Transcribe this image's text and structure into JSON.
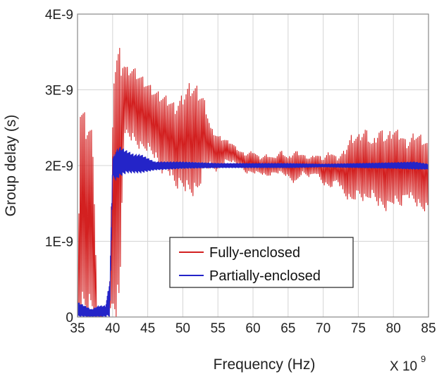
{
  "chart_data": {
    "type": "line",
    "xlabel": "Frequency (Hz)",
    "ylabel": "Group delay (s)",
    "x_multiplier_label": "X 10",
    "x_multiplier_exponent": "9",
    "xlim": [
      35,
      85
    ],
    "ylim": [
      0,
      4e-09
    ],
    "x_ticks": [
      35,
      40,
      45,
      50,
      55,
      60,
      65,
      70,
      75,
      80,
      85
    ],
    "x_tick_labels": [
      "35",
      "40",
      "45",
      "50",
      "55",
      "60",
      "65",
      "70",
      "75",
      "80",
      "85"
    ],
    "y_ticks": [
      0,
      1e-09,
      2e-09,
      3e-09,
      4e-09
    ],
    "y_tick_labels": [
      "0",
      "1E-9",
      "2E-9",
      "3E-9",
      "4E-9"
    ],
    "grid": true,
    "legend_position": "lower-center",
    "series": [
      {
        "name": "Fully-enclosed",
        "color": "#d32020",
        "envelope": {
          "x": [
            35.0,
            35.4,
            36.0,
            36.6,
            37.2,
            37.8,
            38.5,
            39.5,
            40.2,
            40.6,
            41.0,
            41.5,
            42,
            43,
            44,
            45,
            46,
            47,
            48,
            49,
            50,
            51,
            52,
            53,
            54,
            55,
            56,
            57,
            58,
            59,
            60,
            61,
            62,
            63,
            64,
            65,
            66,
            67,
            68,
            69,
            70,
            71,
            72,
            73,
            74,
            75,
            76,
            77,
            78,
            79,
            80,
            81,
            82,
            83,
            84,
            85
          ],
          "high": [
            0.2,
            2.9,
            2.7,
            2.6,
            2.4,
            0.1,
            0.0,
            0.0,
            3.5,
            3.6,
            3.55,
            3.4,
            3.3,
            3.3,
            3.2,
            3.1,
            3.0,
            2.95,
            2.9,
            2.8,
            2.95,
            3.1,
            3.05,
            2.9,
            2.5,
            2.4,
            2.35,
            2.3,
            2.2,
            2.15,
            2.2,
            2.1,
            2.15,
            2.1,
            2.2,
            2.1,
            2.2,
            2.15,
            2.1,
            2.15,
            2.1,
            2.2,
            2.1,
            2.2,
            2.4,
            2.4,
            2.5,
            2.3,
            2.5,
            2.4,
            2.5,
            2.45,
            2.3,
            2.45,
            2.4,
            2.3
          ],
          "low": [
            0.0,
            0.0,
            0.0,
            0.0,
            0.0,
            0.0,
            0.0,
            0.0,
            0.0,
            0.0,
            0.0,
            2.2,
            2.4,
            2.3,
            2.2,
            2.2,
            2.1,
            1.9,
            1.9,
            1.7,
            1.7,
            1.6,
            1.6,
            1.9,
            2.0,
            1.9,
            2.05,
            2.05,
            2.0,
            1.9,
            1.9,
            1.9,
            1.85,
            1.9,
            1.9,
            1.85,
            1.75,
            1.9,
            1.85,
            1.9,
            1.75,
            1.7,
            1.8,
            1.6,
            1.5,
            1.6,
            1.5,
            1.6,
            1.45,
            1.4,
            1.5,
            1.45,
            1.6,
            1.5,
            1.4,
            1.4
          ]
        }
      },
      {
        "name": "Partially-enclosed",
        "color": "#2424c8",
        "envelope": {
          "x": [
            35.0,
            36,
            37,
            38,
            39,
            39.6,
            40.0,
            40.5,
            41,
            42,
            43,
            44,
            45,
            46,
            48,
            50,
            55,
            60,
            65,
            70,
            75,
            80,
            83,
            85
          ],
          "high": [
            0.2,
            0.15,
            0.1,
            0.15,
            0.15,
            0.5,
            2.1,
            2.2,
            2.25,
            2.2,
            2.15,
            2.15,
            2.1,
            2.05,
            2.05,
            2.05,
            2.03,
            2.03,
            2.03,
            2.02,
            2.03,
            2.04,
            2.05,
            2.02
          ],
          "low": [
            0.0,
            0.0,
            0.0,
            0.0,
            0.0,
            0.0,
            1.85,
            1.8,
            1.85,
            1.9,
            1.9,
            1.9,
            1.92,
            1.94,
            1.95,
            1.96,
            1.97,
            1.97,
            1.97,
            1.98,
            1.97,
            1.96,
            1.95,
            1.95
          ]
        }
      }
    ]
  }
}
